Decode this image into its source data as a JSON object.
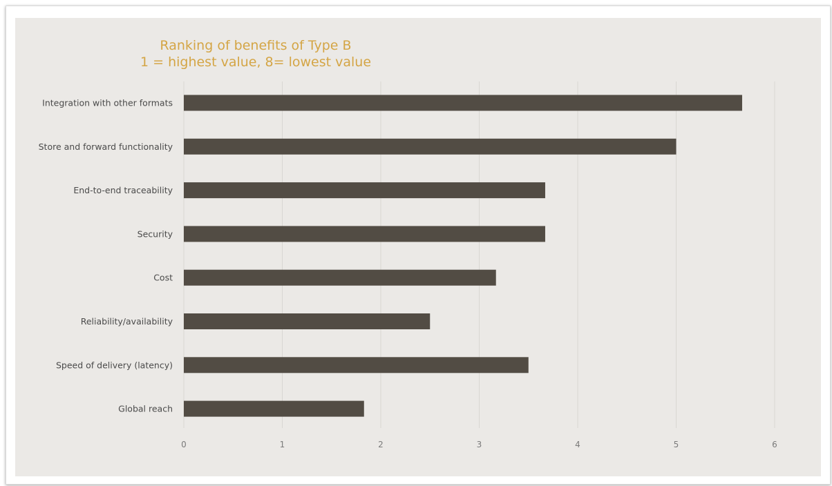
{
  "chart_data": {
    "type": "bar",
    "orientation": "horizontal",
    "title": "Ranking of benefits of Type B",
    "subtitle": "1 = highest value, 8= lowest value",
    "categories": [
      "Integration with other formats",
      "Store and forward functionality",
      "End-to-end traceability",
      "Security",
      "Cost",
      "Reliability/availability",
      "Speed of delivery (latency)",
      "Global reach"
    ],
    "values": [
      5.67,
      5.0,
      3.67,
      3.67,
      3.17,
      2.5,
      3.5,
      1.83
    ],
    "xlim": [
      0,
      6
    ],
    "xticks": [
      "0",
      "1",
      "2",
      "3",
      "4",
      "5",
      "6"
    ],
    "grid": "vertical",
    "legend": "none",
    "bar_color": "#524c44",
    "title_color": "#d4a545",
    "background_color": "#ebe9e6"
  }
}
